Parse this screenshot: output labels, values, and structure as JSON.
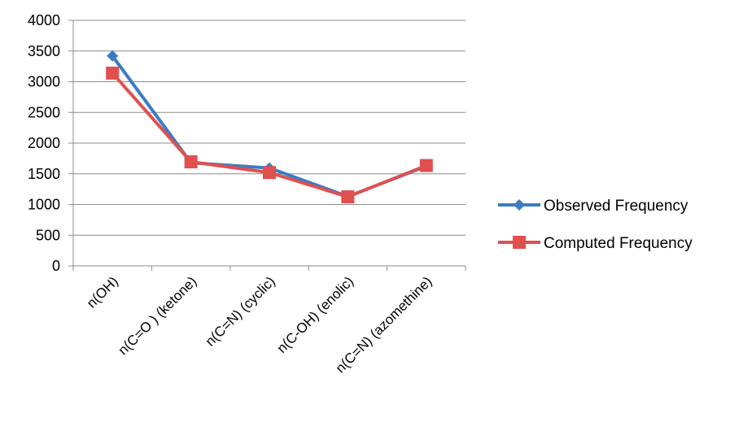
{
  "chart_data": {
    "type": "line",
    "title": "",
    "xlabel": "",
    "ylabel": "",
    "categories": [
      "n(OH)",
      "n(C=O ) (ketone)",
      "n(C=N) (cyclic)",
      "n(C-OH) (enolic)",
      "n(C=N) (azomethine)"
    ],
    "series": [
      {
        "name": "Observed Frequency",
        "values": [
          3420,
          1680,
          1595,
          1130,
          1625
        ],
        "color": "#3a7cc4",
        "marker": "diamond"
      },
      {
        "name": "Computed Frequency",
        "values": [
          3140,
          1695,
          1520,
          1125,
          1635
        ],
        "color": "#e0504f",
        "marker": "square"
      }
    ],
    "ylim": [
      0,
      4000
    ],
    "yticks": [
      0,
      500,
      1000,
      1500,
      2000,
      2500,
      3000,
      3500,
      4000
    ],
    "grid": true,
    "legend_position": "right"
  }
}
